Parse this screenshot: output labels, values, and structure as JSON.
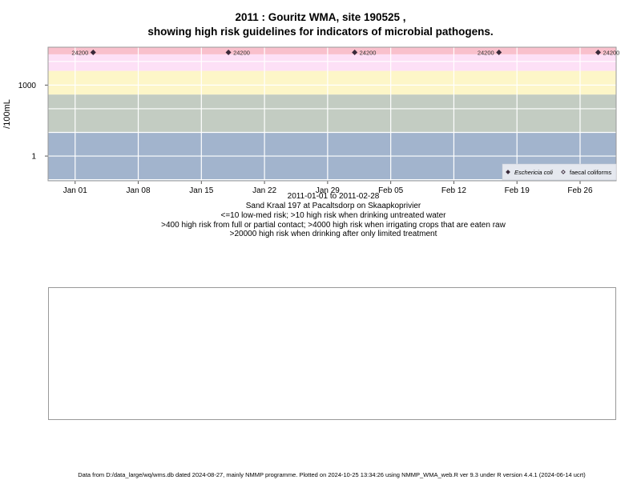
{
  "title_line1": "2011 : Gouritz WMA, site 190525 ,",
  "title_line2": "showing high risk guidelines for indicators of microbial pathogens.",
  "date_range": "2011-01-01 to 2011-02-28",
  "site_description": "Sand Kraal 197 at Pacaltsdorp on Skaapkoprivier",
  "guideline_lines": [
    "<=10 low-med risk; >10 high risk when drinking untreated water",
    ">400 high risk from full or partial contact; >4000 high risk when irrigating crops that are eaten raw",
    ">20000 high risk when drinking after only limited treatment"
  ],
  "footer": "Data from D:/data_large/wq/wms.db dated 2024-08-27, mainly NMMP programme. Plotted on 2024-10-25 13:34:26 using NMMP_WMA_web.R ver 9.3 under R version 4.4.1 (2024-06-14 ucrt)",
  "chart_data": {
    "type": "scatter",
    "ylabel": "/100mL",
    "y_scale": "log10",
    "ylim": [
      0.09,
      40000
    ],
    "xlim": [
      "2010-12-29",
      "2011-03-02"
    ],
    "x_ticks": [
      {
        "date": "2011-01-01",
        "label": "Jan 01"
      },
      {
        "date": "2011-01-08",
        "label": "Jan 08"
      },
      {
        "date": "2011-01-15",
        "label": "Jan 15"
      },
      {
        "date": "2011-01-22",
        "label": "Jan 22"
      },
      {
        "date": "2011-01-29",
        "label": "Jan 29"
      },
      {
        "date": "2011-02-05",
        "label": "Feb 05"
      },
      {
        "date": "2011-02-12",
        "label": "Feb 12"
      },
      {
        "date": "2011-02-19",
        "label": "Feb 19"
      },
      {
        "date": "2011-02-26",
        "label": "Feb 26"
      }
    ],
    "y_ticks": [
      {
        "value": 1,
        "label": "1"
      },
      {
        "value": 1000,
        "label": "1000"
      }
    ],
    "risk_bands": [
      {
        "from": 0.09,
        "to": 10,
        "color": "#a2b4cd"
      },
      {
        "from": 10,
        "to": 400,
        "color": "#c3ccc2"
      },
      {
        "from": 400,
        "to": 4000,
        "color": "#fdf6c8"
      },
      {
        "from": 4000,
        "to": 20000,
        "color": "#fde0f6"
      },
      {
        "from": 20000,
        "to": 40000,
        "color": "#f9c0cc"
      }
    ],
    "grid": true,
    "legend_position": "bottom-right",
    "series": [
      {
        "name": "Eschericia coli",
        "marker": "filled-diamond",
        "color": "#3a2a3a",
        "points": [
          {
            "x": "2011-01-03",
            "y": 24200,
            "label": "24200",
            "label_side": "left"
          },
          {
            "x": "2011-01-18",
            "y": 24200,
            "label": "24200",
            "label_side": "right"
          },
          {
            "x": "2011-02-01",
            "y": 24200,
            "label": "24200",
            "label_side": "right"
          },
          {
            "x": "2011-02-17",
            "y": 24200,
            "label": "24200",
            "label_side": "left"
          },
          {
            "x": "2011-02-28",
            "y": 24200,
            "label": "24200",
            "label_side": "right"
          }
        ]
      },
      {
        "name": "faecal coliforms",
        "marker": "open-diamond",
        "color": "#3a2a3a",
        "points": []
      }
    ]
  }
}
